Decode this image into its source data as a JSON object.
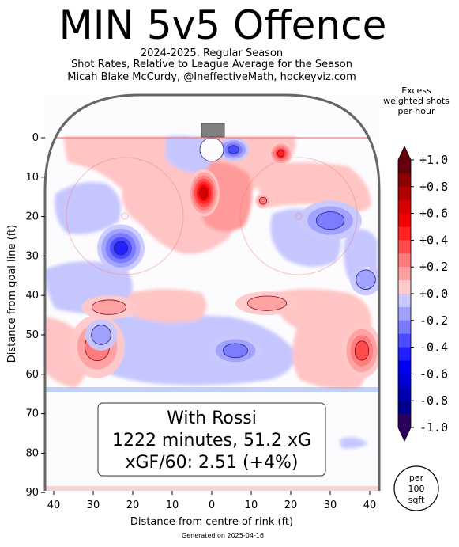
{
  "header": {
    "title": "MIN 5v5 Offence",
    "subtitle_1": "2024-2025, Regular Season",
    "subtitle_2": "Shot Rates, Relative to League Average for the Season",
    "subtitle_3": "Micah Blake McCurdy, @IneffectiveMath, hockeyviz.com"
  },
  "colorbar": {
    "title_line_1": "Excess",
    "title_line_2": "weighted shots",
    "title_line_3": "per hour",
    "ticks": [
      "+1.0",
      "+0.8",
      "+0.6",
      "+0.4",
      "+0.2",
      "+0.0",
      "-0.2",
      "-0.4",
      "-0.6",
      "-0.8",
      "-1.0"
    ],
    "levels": [
      {
        "value": 1.0,
        "color": "#67000d"
      },
      {
        "value": 0.9,
        "color": "#8b0000"
      },
      {
        "value": 0.8,
        "color": "#b00000"
      },
      {
        "value": 0.7,
        "color": "#d40000"
      },
      {
        "value": 0.6,
        "color": "#f00000"
      },
      {
        "value": 0.5,
        "color": "#ff2020"
      },
      {
        "value": 0.4,
        "color": "#ff4a4a"
      },
      {
        "value": 0.3,
        "color": "#ff7a7a"
      },
      {
        "value": 0.2,
        "color": "#ffa0a0"
      },
      {
        "value": 0.1,
        "color": "#ffc8c8"
      },
      {
        "value": 0.0,
        "color": "#ffffff"
      },
      {
        "value": -0.1,
        "color": "#c8c8ff"
      },
      {
        "value": -0.2,
        "color": "#a0a0ff"
      },
      {
        "value": -0.3,
        "color": "#7a7aff"
      },
      {
        "value": -0.4,
        "color": "#4a4aff"
      },
      {
        "value": -0.5,
        "color": "#2020ff"
      },
      {
        "value": -0.6,
        "color": "#0000f0"
      },
      {
        "value": -0.7,
        "color": "#0000d4"
      },
      {
        "value": -0.8,
        "color": "#0000b0"
      },
      {
        "value": -0.9,
        "color": "#00008b"
      },
      {
        "value": -1.0,
        "color": "#2a0060"
      }
    ]
  },
  "badge": {
    "line_1": "per",
    "line_2": "100",
    "line_3": "sqft"
  },
  "annotation": {
    "line_1": "With Rossi",
    "line_2": "1222 minutes, 51.2 xG",
    "line_3": "xGF/60: 2.51 (+4%)"
  },
  "footer": "Generated on 2025-04-16",
  "chart_data": {
    "type": "heatmap",
    "xlabel": "Distance from centre of rink (ft)",
    "ylabel": "Distance from goal line (ft)",
    "xlim": [
      -42.5,
      42.5
    ],
    "ylim": [
      90,
      -11
    ],
    "x_ticks": [
      "40",
      "30",
      "20",
      "10",
      "0",
      "10",
      "20",
      "30",
      "40"
    ],
    "x_tick_values": [
      -40,
      -30,
      -20,
      -10,
      0,
      10,
      20,
      30,
      40
    ],
    "y_ticks": [
      "0",
      "10",
      "20",
      "30",
      "40",
      "50",
      "60",
      "70",
      "80",
      "90"
    ],
    "y_tick_values": [
      0,
      10,
      20,
      30,
      40,
      50,
      60,
      70,
      80,
      90
    ],
    "colorscale_range": [
      -1.0,
      1.0
    ],
    "hotspots": [
      {
        "x": 17.5,
        "y": 4,
        "value": 0.5,
        "rx": 3,
        "ry": 3
      },
      {
        "x": 5.5,
        "y": 3,
        "value": -0.4,
        "rx": 4,
        "ry": 3
      },
      {
        "x": 0,
        "y": 3,
        "value": 0.0,
        "rx": 3,
        "ry": 3
      },
      {
        "x": -2,
        "y": 14,
        "value": 0.7,
        "rx": 4,
        "ry": 6
      },
      {
        "x": 13,
        "y": 16,
        "value": 0.3,
        "rx": 2,
        "ry": 2
      },
      {
        "x": 30,
        "y": 21,
        "value": -0.3,
        "rx": 8,
        "ry": 5
      },
      {
        "x": -23,
        "y": 28,
        "value": -0.5,
        "rx": 6,
        "ry": 6
      },
      {
        "x": 39,
        "y": 36,
        "value": -0.2,
        "rx": 4,
        "ry": 4
      },
      {
        "x": 14,
        "y": 42,
        "value": 0.2,
        "rx": 8,
        "ry": 3
      },
      {
        "x": -26,
        "y": 43,
        "value": 0.2,
        "rx": 7,
        "ry": 3
      },
      {
        "x": 6,
        "y": 54,
        "value": -0.3,
        "rx": 7,
        "ry": 4
      },
      {
        "x": 38,
        "y": 54,
        "value": 0.4,
        "rx": 5,
        "ry": 7
      },
      {
        "x": -29,
        "y": 53,
        "value": 0.3,
        "rx": 7,
        "ry": 8
      },
      {
        "x": -28,
        "y": 50,
        "value": -0.2,
        "rx": 4,
        "ry": 4
      }
    ]
  }
}
